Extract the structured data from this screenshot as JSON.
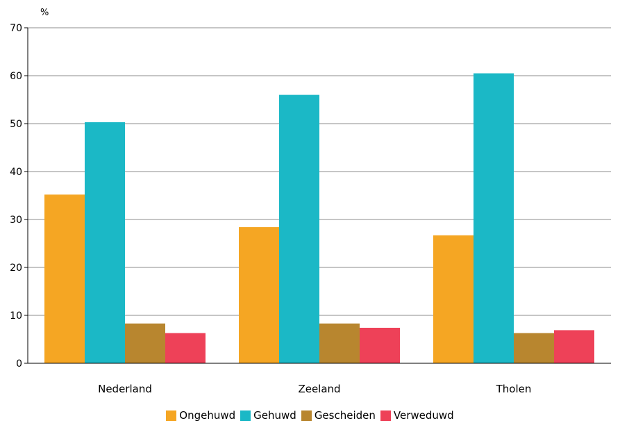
{
  "chart_data": {
    "type": "bar",
    "ylabel": "%",
    "ylim": [
      0,
      70
    ],
    "yticks": [
      0,
      10,
      20,
      30,
      40,
      50,
      60,
      70
    ],
    "categories": [
      "Nederland",
      "Zeeland",
      "Tholen"
    ],
    "series": [
      {
        "name": "Ongehuwd",
        "color": "#F5A623",
        "values": [
          35.2,
          28.4,
          26.7
        ]
      },
      {
        "name": "Gehuwd",
        "color": "#1BB8C6",
        "values": [
          50.3,
          56.0,
          60.5
        ]
      },
      {
        "name": "Gescheiden",
        "color": "#B8862F",
        "values": [
          8.3,
          8.3,
          6.3
        ]
      },
      {
        "name": "Verweduwd",
        "color": "#EE4158",
        "values": [
          6.3,
          7.4,
          6.9
        ]
      }
    ],
    "grid": true,
    "legend_position": "bottom"
  }
}
